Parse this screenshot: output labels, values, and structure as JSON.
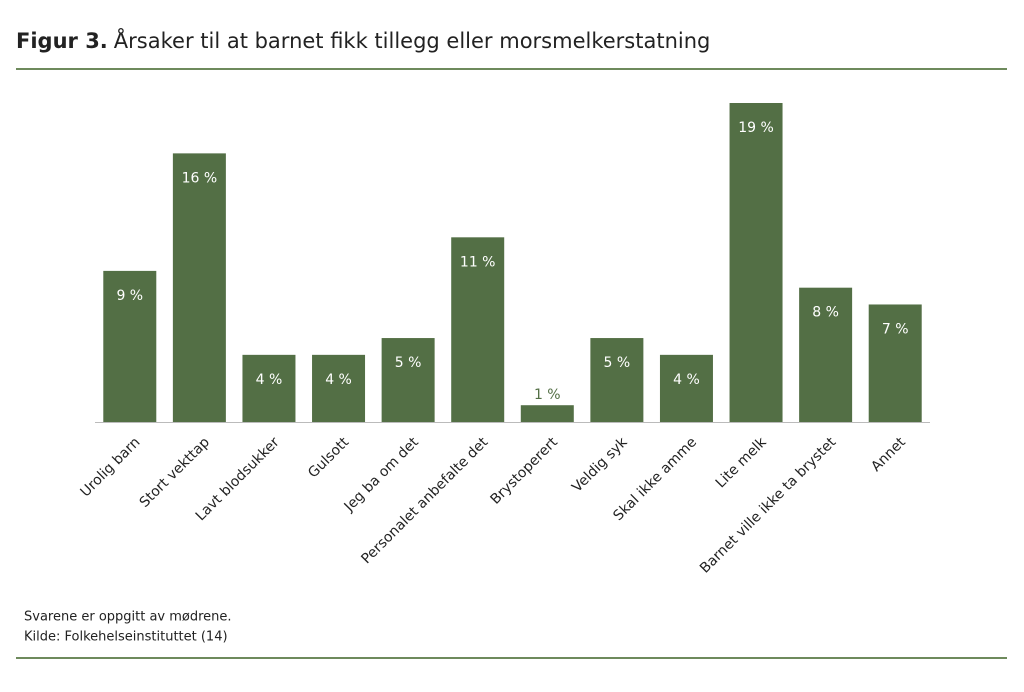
{
  "chart_data": {
    "type": "bar",
    "figure_label": "Figur 3.",
    "title": "Årsaker til at barnet fikk tillegg eller morsmelkerstatning",
    "categories": [
      "Urolig barn",
      "Stort vekttap",
      "Lavt blodsukker",
      "Gulsott",
      "Jeg ba om det",
      "Personalet anbefalte det",
      "Brystoperert",
      "Veldig syk",
      "Skal ikke amme",
      "Lite melk",
      "Barnet ville ikke ta brystet",
      "Annet"
    ],
    "values": [
      9,
      16,
      4,
      4,
      5,
      11,
      1,
      5,
      4,
      19,
      8,
      7
    ],
    "value_labels": [
      "9 %",
      "16 %",
      "4 %",
      "4 %",
      "5 %",
      "11 %",
      "1 %",
      "5 %",
      "4 %",
      "19 %",
      "8 %",
      "7 %"
    ],
    "color": "#536f45",
    "notes": [
      "Svarene er oppgitt av mødrene.",
      "Kilde: Folkehelseinstituttet (14)"
    ]
  }
}
